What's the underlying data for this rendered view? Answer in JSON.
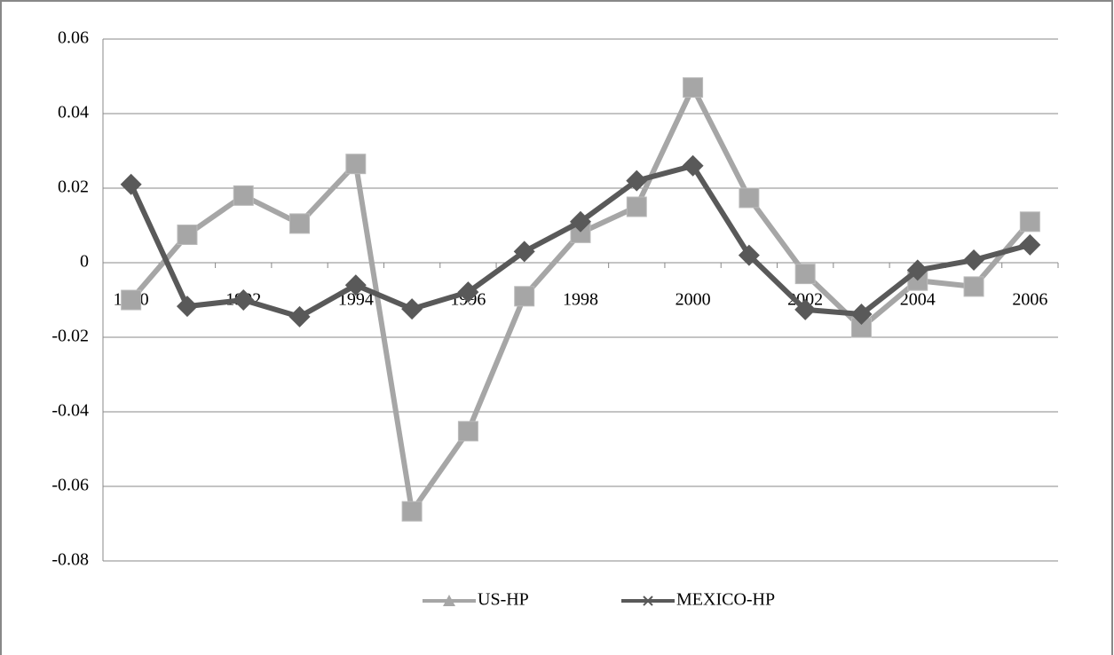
{
  "chart_data": {
    "type": "line",
    "categories": [
      "1990",
      null,
      "1992",
      null,
      "1994",
      null,
      "1996",
      null,
      "1998",
      null,
      "2000",
      null,
      "2002",
      null,
      "2004",
      null,
      "2006"
    ],
    "series": [
      {
        "name": "US-HP",
        "color": "#a6a6a6",
        "values": [
          -0.01,
          0.0075,
          0.018,
          0.0105,
          0.0265,
          -0.0667,
          -0.0452,
          -0.009,
          0.008,
          0.015,
          0.047,
          0.0174,
          -0.003,
          -0.0174,
          -0.0048,
          -0.0064,
          0.011
        ]
      },
      {
        "name": "MEXICO-HP",
        "color": "#595959",
        "values": [
          0.021,
          -0.0117,
          -0.01,
          -0.0145,
          -0.006,
          -0.0124,
          -0.0079,
          0.003,
          0.011,
          0.022,
          0.026,
          0.002,
          -0.0126,
          -0.0138,
          -0.002,
          0.0007,
          0.0048
        ]
      }
    ],
    "ylim": [
      -0.08,
      0.06
    ],
    "yticks": [
      {
        "value": 0.06,
        "label": "0.06"
      },
      {
        "value": 0.04,
        "label": "0.04"
      },
      {
        "value": 0.02,
        "label": "0.02"
      },
      0,
      {
        "value": -0.02,
        "label": "-0.02"
      },
      {
        "value": -0.04,
        "label": "-0.04"
      },
      {
        "value": -0.06,
        "label": "-0.06"
      },
      {
        "value": -0.08,
        "label": "-0.08"
      }
    ],
    "grid": true
  }
}
